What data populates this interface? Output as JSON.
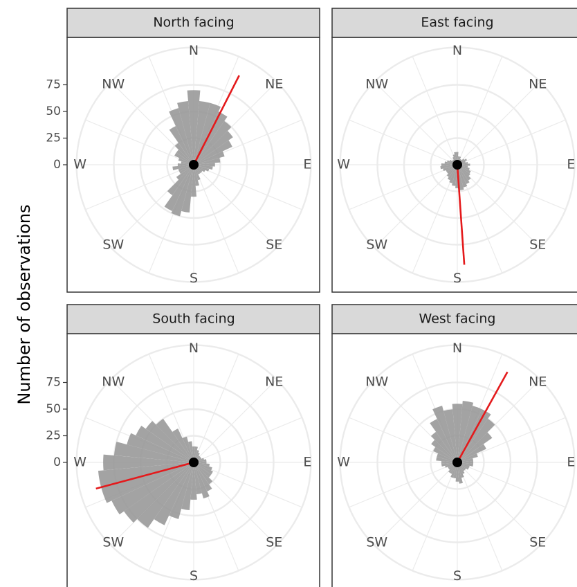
{
  "chart_data": [
    {
      "type": "polar_bar",
      "title": "North facing",
      "ylabel": "Number of observations",
      "x": [
        0,
        10,
        20,
        30,
        40,
        50,
        60,
        70,
        80,
        90,
        100,
        110,
        120,
        130,
        140,
        150,
        160,
        170,
        180,
        190,
        200,
        210,
        220,
        230,
        240,
        250,
        260,
        270,
        280,
        290,
        300,
        310,
        320,
        330,
        340,
        350
      ],
      "values": [
        70,
        60,
        60,
        55,
        50,
        45,
        40,
        30,
        25,
        20,
        18,
        15,
        12,
        10,
        10,
        10,
        15,
        20,
        30,
        45,
        50,
        48,
        35,
        20,
        15,
        15,
        20,
        15,
        12,
        15,
        20,
        20,
        25,
        40,
        55,
        60
      ],
      "color": "#999999",
      "mean_angle": 27,
      "mean_length": 94,
      "mean_color": "#e41a1c",
      "direction_labels": [
        "N",
        "NE",
        "E",
        "SE",
        "S",
        "SW",
        "W",
        "NW"
      ],
      "ylim": [
        0,
        110
      ],
      "yticks": [
        0,
        25,
        50,
        75
      ]
    },
    {
      "type": "polar_bar",
      "title": "East facing",
      "x": [
        0,
        10,
        20,
        30,
        40,
        50,
        60,
        70,
        80,
        90,
        100,
        110,
        120,
        130,
        140,
        150,
        160,
        170,
        180,
        190,
        200,
        210,
        220,
        230,
        240,
        250,
        260,
        270,
        280,
        290,
        300,
        310,
        320,
        330,
        340,
        350
      ],
      "values": [
        12,
        8,
        8,
        6,
        6,
        8,
        10,
        8,
        10,
        12,
        10,
        12,
        14,
        15,
        18,
        20,
        22,
        24,
        22,
        20,
        18,
        16,
        14,
        12,
        12,
        14,
        16,
        15,
        12,
        10,
        8,
        6,
        6,
        8,
        10,
        12
      ],
      "color": "#999999",
      "mean_angle": 176,
      "mean_length": 94,
      "mean_color": "#e41a1c",
      "direction_labels": [
        "N",
        "NE",
        "E",
        "SE",
        "S",
        "SW",
        "W",
        "NW"
      ],
      "ylim": [
        0,
        110
      ],
      "yticks": [
        0,
        25,
        50,
        75
      ]
    },
    {
      "type": "polar_bar",
      "title": "South facing",
      "x": [
        0,
        10,
        20,
        30,
        40,
        50,
        60,
        70,
        80,
        90,
        100,
        110,
        120,
        130,
        140,
        150,
        160,
        170,
        180,
        190,
        200,
        210,
        220,
        230,
        240,
        250,
        260,
        270,
        280,
        290,
        300,
        310,
        320,
        330,
        340,
        350
      ],
      "values": [
        15,
        15,
        12,
        10,
        8,
        8,
        8,
        10,
        12,
        12,
        15,
        18,
        20,
        20,
        25,
        30,
        35,
        30,
        35,
        45,
        55,
        65,
        75,
        80,
        85,
        90,
        90,
        85,
        75,
        65,
        60,
        55,
        50,
        35,
        25,
        20
      ],
      "color": "#999999",
      "mean_angle": 255,
      "mean_length": 95,
      "mean_color": "#e41a1c",
      "direction_labels": [
        "N",
        "NE",
        "E",
        "SE",
        "S",
        "SW",
        "W",
        "NW"
      ],
      "ylim": [
        0,
        110
      ],
      "yticks": [
        0,
        25,
        50,
        75
      ]
    },
    {
      "type": "polar_bar",
      "title": "West facing",
      "x": [
        0,
        10,
        20,
        30,
        40,
        50,
        60,
        70,
        80,
        90,
        100,
        110,
        120,
        130,
        140,
        150,
        160,
        170,
        180,
        190,
        200,
        210,
        220,
        230,
        240,
        250,
        260,
        270,
        280,
        290,
        300,
        310,
        320,
        330,
        340,
        350
      ],
      "values": [
        55,
        58,
        55,
        55,
        50,
        40,
        30,
        20,
        15,
        15,
        15,
        12,
        12,
        10,
        10,
        12,
        15,
        20,
        18,
        15,
        15,
        12,
        12,
        10,
        10,
        12,
        15,
        15,
        20,
        20,
        25,
        30,
        35,
        45,
        55,
        50
      ],
      "color": "#999999",
      "mean_angle": 29,
      "mean_length": 97,
      "mean_color": "#e41a1c",
      "direction_labels": [
        "N",
        "NE",
        "E",
        "SE",
        "S",
        "SW",
        "W",
        "NW"
      ],
      "ylim": [
        0,
        110
      ],
      "yticks": [
        0,
        25,
        50,
        75
      ]
    }
  ]
}
